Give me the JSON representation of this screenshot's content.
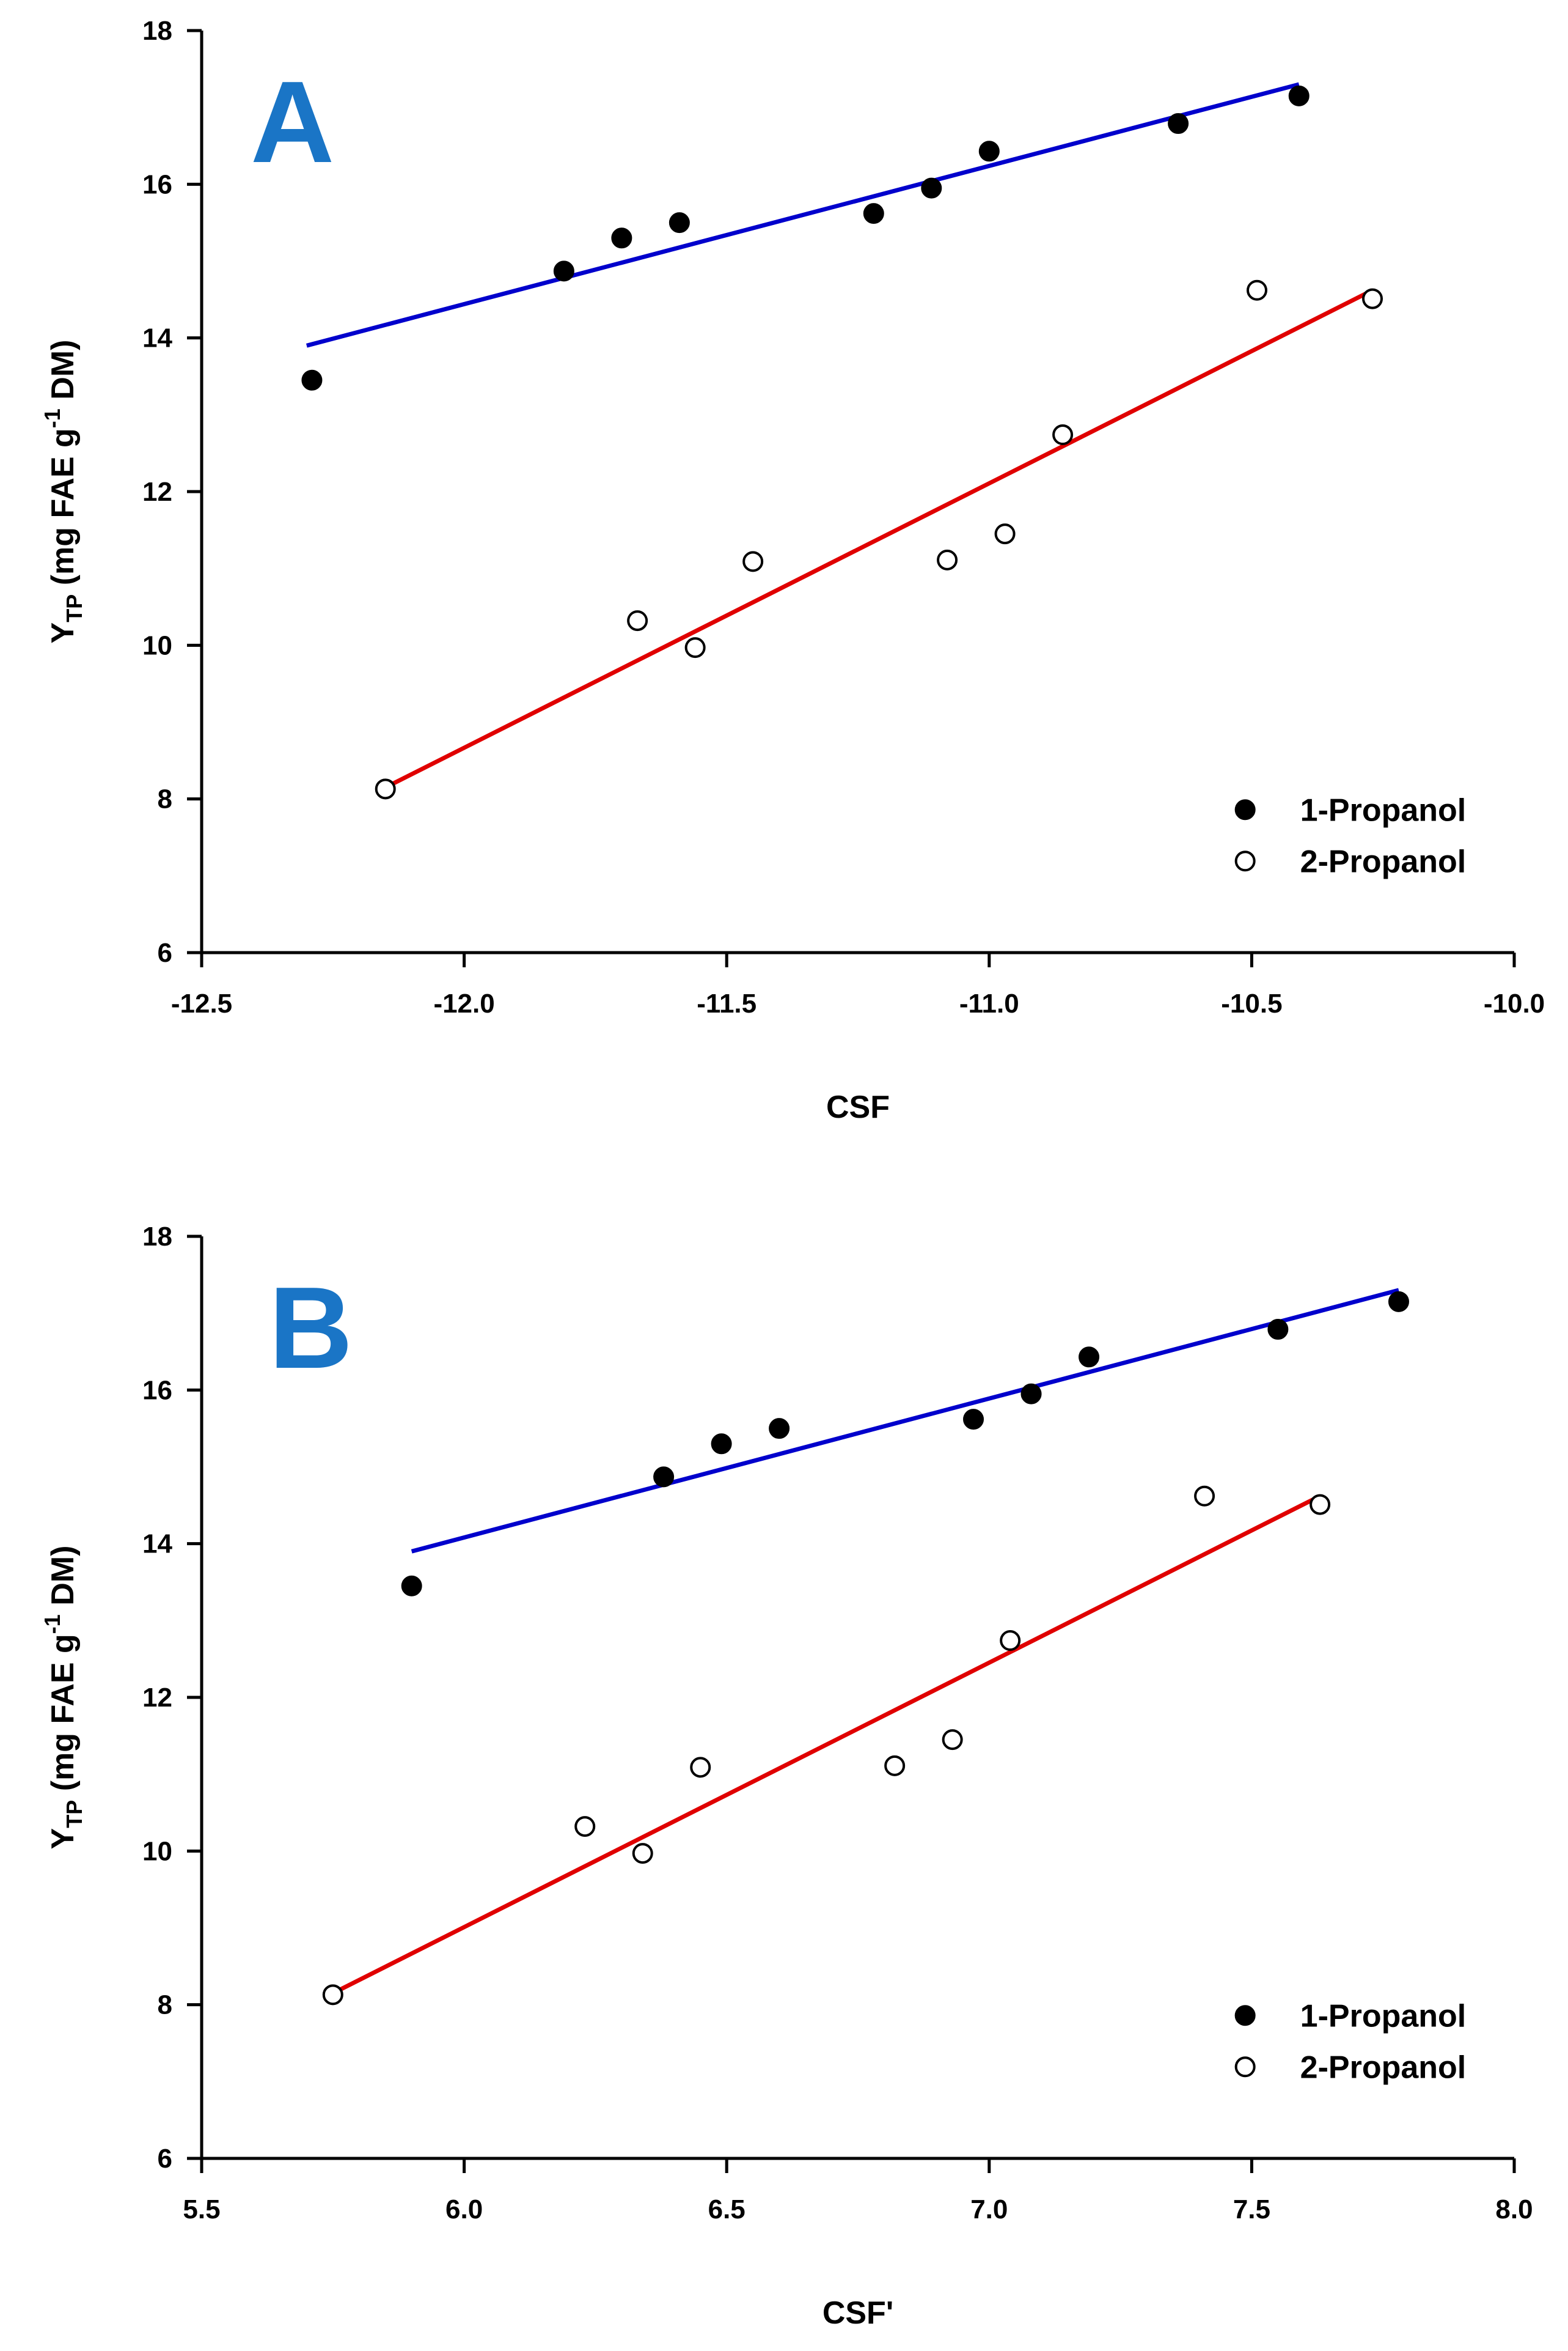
{
  "chart_data": [
    {
      "type": "scatter",
      "panel_label": "A",
      "xlabel": "CSF",
      "ylabel": "YTP (mg FAE g-1 DM)",
      "ylabel_parts": {
        "base": "Y",
        "sub": "TP",
        "mid": " (mg FAE g",
        "sup": "-1",
        "end": " DM)"
      },
      "xlim": [
        -12.5,
        -10.0
      ],
      "ylim": [
        6,
        18
      ],
      "xticks": [
        -12.5,
        -12.0,
        -11.5,
        -11.0,
        -10.5,
        -10.0
      ],
      "xtick_labels": [
        "-12.5",
        "-12.0",
        "-11.5",
        "-11.0",
        "-10.5",
        "-10.0"
      ],
      "yticks": [
        6,
        8,
        10,
        12,
        14,
        16,
        18
      ],
      "ytick_labels": [
        "6",
        "8",
        "10",
        "12",
        "14",
        "16",
        "18"
      ],
      "legend_position": "bottom-right",
      "series": [
        {
          "name": "1-Propanol",
          "marker": "filled-circle",
          "line_color": "#0000CC",
          "x": [
            -12.29,
            -11.81,
            -11.7,
            -11.59,
            -11.22,
            -11.11,
            -11.0,
            -10.64,
            -10.41
          ],
          "y": [
            13.45,
            14.87,
            15.3,
            15.5,
            15.62,
            15.95,
            16.43,
            16.79,
            17.15
          ],
          "fit": {
            "x": [
              -12.3,
              -10.41
            ],
            "y": [
              13.9,
              17.3
            ]
          }
        },
        {
          "name": "2-Propanol",
          "marker": "open-circle",
          "line_color": "#E00000",
          "x": [
            -12.15,
            -11.67,
            -11.56,
            -11.45,
            -11.08,
            -10.97,
            -10.86,
            -10.49,
            -10.27
          ],
          "y": [
            8.13,
            10.32,
            9.97,
            11.09,
            11.11,
            11.45,
            12.74,
            14.62,
            14.51
          ],
          "fit": {
            "x": [
              -12.15,
              -10.27
            ],
            "y": [
              8.15,
              14.62
            ]
          }
        }
      ]
    },
    {
      "type": "scatter",
      "panel_label": "B",
      "xlabel": "CSF'",
      "ylabel": "YTP (mg FAE g-1 DM)",
      "ylabel_parts": {
        "base": "Y",
        "sub": "TP",
        "mid": " (mg FAE g",
        "sup": "-1",
        "end": " DM)"
      },
      "xlim": [
        5.5,
        8.0
      ],
      "ylim": [
        6,
        18
      ],
      "xticks": [
        5.5,
        6.0,
        6.5,
        7.0,
        7.5,
        8.0
      ],
      "xtick_labels": [
        "5.5",
        "6.0",
        "6.5",
        "7.0",
        "7.5",
        "8.0"
      ],
      "yticks": [
        6,
        8,
        10,
        12,
        14,
        16,
        18
      ],
      "ytick_labels": [
        "6",
        "8",
        "10",
        "12",
        "14",
        "16",
        "18"
      ],
      "legend_position": "bottom-right",
      "series": [
        {
          "name": "1-Propanol",
          "marker": "filled-circle",
          "line_color": "#0000CC",
          "x": [
            5.9,
            6.38,
            6.49,
            6.6,
            6.97,
            7.08,
            7.19,
            7.55,
            7.78
          ],
          "y": [
            13.45,
            14.87,
            15.3,
            15.5,
            15.62,
            15.95,
            16.43,
            16.79,
            17.15
          ],
          "fit": {
            "x": [
              5.9,
              7.78
            ],
            "y": [
              13.9,
              17.3
            ]
          }
        },
        {
          "name": "2-Propanol",
          "marker": "open-circle",
          "line_color": "#E00000",
          "x": [
            5.75,
            6.23,
            6.34,
            6.45,
            6.82,
            6.93,
            7.04,
            7.41,
            7.63
          ],
          "y": [
            8.13,
            10.32,
            9.97,
            11.09,
            11.11,
            11.45,
            12.74,
            14.62,
            14.51
          ],
          "fit": {
            "x": [
              5.75,
              7.63
            ],
            "y": [
              8.15,
              14.62
            ]
          }
        }
      ]
    }
  ],
  "colors": {
    "panel_label": "#1A75C6",
    "axis": "#000000"
  }
}
